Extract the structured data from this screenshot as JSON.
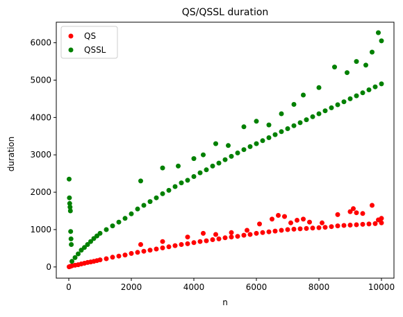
{
  "chart_data": {
    "type": "scatter",
    "title": "QS/QSSL duration",
    "xlabel": "n",
    "ylabel": "duration",
    "xlim": [
      -400,
      10400
    ],
    "ylim": [
      -300,
      6550
    ],
    "xticks": [
      0,
      2000,
      4000,
      6000,
      8000,
      10000
    ],
    "yticks": [
      0,
      1000,
      2000,
      3000,
      4000,
      5000,
      6000
    ],
    "grid": false,
    "legend_position": "top-left",
    "series": [
      {
        "name": "QS",
        "color": "#ff0000",
        "x": [
          10,
          50,
          100,
          200,
          300,
          400,
          500,
          600,
          700,
          800,
          900,
          1000,
          1200,
          1400,
          1600,
          1800,
          2000,
          2200,
          2400,
          2600,
          2800,
          3000,
          3200,
          3400,
          3600,
          3800,
          4000,
          4200,
          4400,
          4600,
          4800,
          5000,
          5200,
          5400,
          5600,
          5800,
          6000,
          6200,
          6400,
          6600,
          6800,
          7000,
          7200,
          7400,
          7600,
          7800,
          8000,
          8200,
          8400,
          8600,
          8800,
          9000,
          9200,
          9400,
          9600,
          9800,
          10000,
          2300,
          3000,
          3800,
          4300,
          4700,
          5200,
          5700,
          6100,
          6500,
          6700,
          6900,
          7100,
          7300,
          7500,
          7700,
          8100,
          8600,
          9000,
          9100,
          9200,
          9400,
          9700,
          9900,
          10000
        ],
        "y": [
          5,
          15,
          30,
          45,
          60,
          80,
          100,
          120,
          135,
          150,
          170,
          190,
          220,
          260,
          290,
          320,
          360,
          390,
          420,
          450,
          480,
          510,
          540,
          570,
          600,
          620,
          650,
          680,
          700,
          730,
          750,
          780,
          800,
          820,
          850,
          870,
          900,
          920,
          940,
          960,
          980,
          1000,
          1010,
          1020,
          1030,
          1040,
          1050,
          1060,
          1080,
          1100,
          1110,
          1120,
          1130,
          1140,
          1150,
          1160,
          1180,
          600,
          680,
          800,
          900,
          870,
          920,
          980,
          1150,
          1280,
          1380,
          1350,
          1180,
          1250,
          1280,
          1200,
          1180,
          1400,
          1480,
          1560,
          1450,
          1430,
          1650,
          1260,
          1300
        ]
      },
      {
        "name": "QSSL",
        "color": "#008000",
        "x": [
          10,
          20,
          30,
          40,
          50,
          60,
          70,
          80,
          100,
          200,
          300,
          400,
          500,
          600,
          700,
          800,
          900,
          1000,
          1200,
          1400,
          1600,
          1800,
          2000,
          2200,
          2400,
          2600,
          2800,
          3000,
          3200,
          3400,
          3600,
          3800,
          4000,
          4200,
          4400,
          4600,
          4800,
          5000,
          5200,
          5400,
          5600,
          5800,
          6000,
          6200,
          6400,
          6600,
          6800,
          7000,
          7200,
          7400,
          7600,
          7800,
          8000,
          8200,
          8400,
          8600,
          8800,
          9000,
          9200,
          9400,
          9600,
          9800,
          10000,
          2300,
          3000,
          3500,
          4000,
          4300,
          4700,
          5100,
          5600,
          6000,
          6400,
          6800,
          7200,
          7500,
          8000,
          8500,
          8900,
          9200,
          9500,
          9700,
          9900,
          10000
        ],
        "y": [
          2350,
          1850,
          1700,
          1600,
          1500,
          950,
          750,
          600,
          150,
          250,
          350,
          450,
          520,
          600,
          680,
          760,
          830,
          900,
          1000,
          1100,
          1200,
          1300,
          1420,
          1550,
          1650,
          1750,
          1850,
          1960,
          2050,
          2150,
          2250,
          2320,
          2420,
          2520,
          2600,
          2700,
          2780,
          2870,
          2960,
          3050,
          3140,
          3220,
          3300,
          3380,
          3460,
          3540,
          3620,
          3700,
          3780,
          3860,
          3940,
          4020,
          4100,
          4180,
          4260,
          4340,
          4420,
          4500,
          4580,
          4660,
          4740,
          4820,
          4900,
          2300,
          2650,
          2700,
          2900,
          3000,
          3300,
          3250,
          3750,
          3900,
          3800,
          4100,
          4350,
          4600,
          4800,
          5350,
          5200,
          5500,
          5400,
          5750,
          6270,
          6050
        ]
      }
    ]
  }
}
